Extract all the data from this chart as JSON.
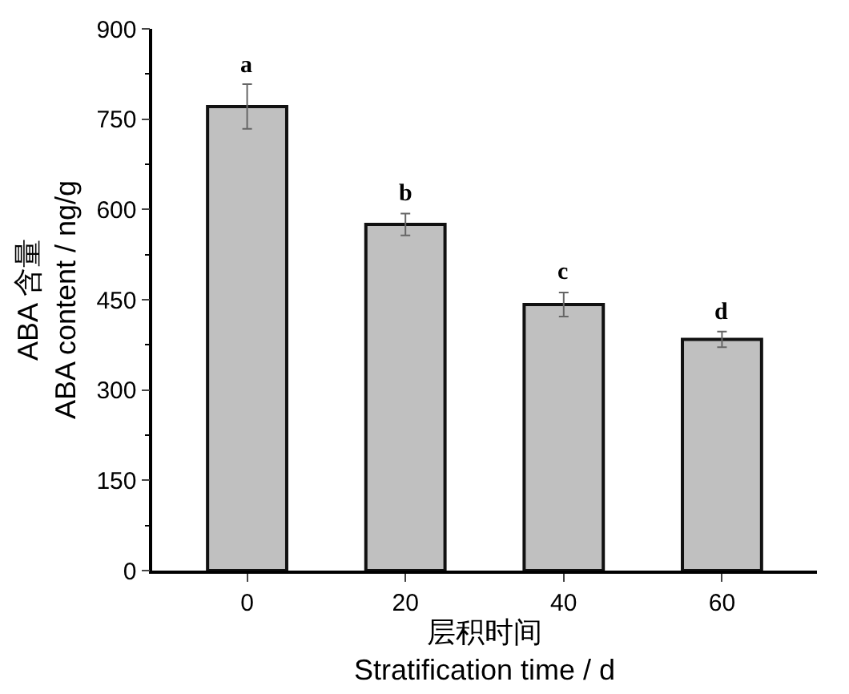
{
  "chart_data": {
    "type": "bar",
    "categories": [
      "0",
      "20",
      "40",
      "60"
    ],
    "values": [
      771,
      575,
      442,
      384
    ],
    "errors": [
      37,
      18,
      20,
      13
    ],
    "color": "#c0c0c0",
    "xlabel": "层积时间\nStratification time / d",
    "ylabel": "ABA 含量\nABA content / ng/g",
    "ylim": [
      0,
      900
    ],
    "yticks": [
      0,
      150,
      300,
      450,
      600,
      750,
      900
    ],
    "annotations": [
      {
        "text": "a",
        "x": "0",
        "y": 808
      },
      {
        "text": "b",
        "x": "20",
        "y": 594
      },
      {
        "text": "c",
        "x": "40",
        "y": 462
      },
      {
        "text": "d",
        "x": "60",
        "y": 397
      }
    ]
  }
}
